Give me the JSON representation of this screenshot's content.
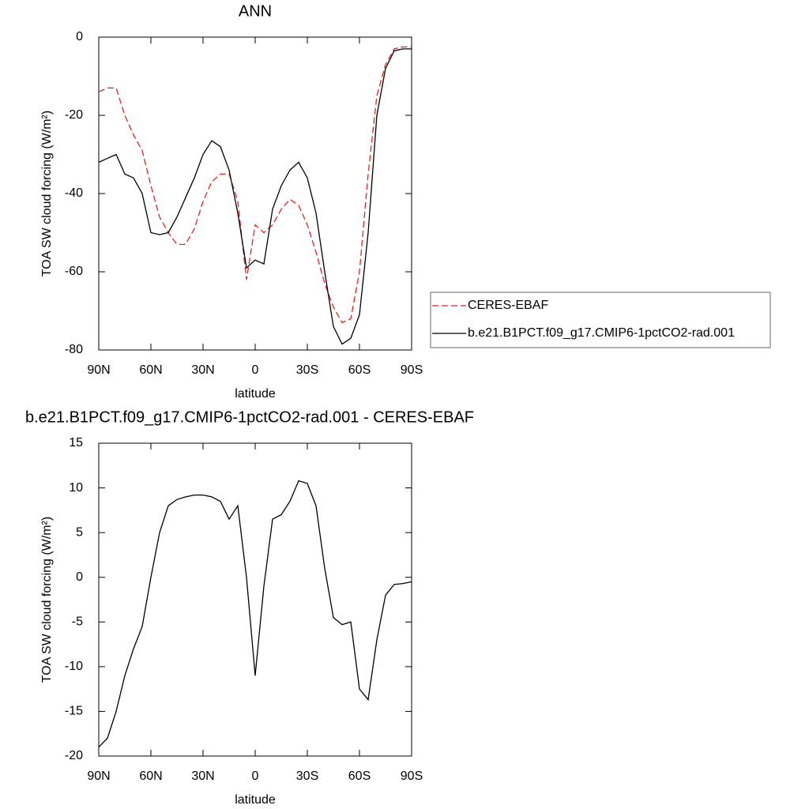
{
  "chart_data": [
    {
      "type": "line",
      "title": "ANN",
      "xlabel": "latitude",
      "ylabel": "TOA SW cloud forcing (W/m²)",
      "x": [
        90,
        85,
        80,
        75,
        70,
        65,
        60,
        55,
        50,
        45,
        40,
        35,
        30,
        25,
        20,
        15,
        10,
        5,
        0,
        -5,
        -10,
        -15,
        -20,
        -25,
        -30,
        -35,
        -40,
        -45,
        -50,
        -55,
        -60,
        -65,
        -70,
        -75,
        -80,
        -85,
        -90
      ],
      "xlim": [
        90,
        -90
      ],
      "xticks": [
        {
          "value": 90,
          "label": "90N"
        },
        {
          "value": 60,
          "label": "60N"
        },
        {
          "value": 30,
          "label": "30N"
        },
        0,
        {
          "value": -30,
          "label": "30S"
        },
        {
          "value": -60,
          "label": "60S"
        },
        {
          "value": -90,
          "label": "90S"
        }
      ],
      "ylim": [
        -80,
        0
      ],
      "yticks": [
        0,
        -20,
        -40,
        -60,
        -80
      ],
      "series": [
        {
          "name": "CERES-EBAF",
          "color": "#e8201c",
          "dashed": true,
          "values": [
            -14,
            -13,
            -13,
            -20,
            -25,
            -29,
            -38,
            -46,
            -50,
            -53,
            -53,
            -49,
            -42,
            -37,
            -35,
            -35,
            -42,
            -62,
            -48,
            -50,
            -48,
            -44,
            -41.5,
            -43,
            -48,
            -55,
            -63,
            -69,
            -73,
            -72,
            -60,
            -35,
            -15,
            -7,
            -3,
            -2.5,
            -2.5
          ]
        },
        {
          "name": "b.e21.B1PCT.f09_g17.CMIP6-1pctCO2-rad.001",
          "color": "#000000",
          "dashed": false,
          "values": [
            -32,
            -31,
            -30,
            -35,
            -36,
            -40,
            -50,
            -50.5,
            -50,
            -46,
            -41,
            -36,
            -30,
            -26.5,
            -28,
            -34,
            -45,
            -59,
            -57,
            -58,
            -44,
            -38,
            -34,
            -32,
            -36,
            -45,
            -60,
            -74,
            -78.5,
            -77,
            -71,
            -50,
            -20,
            -8,
            -3.5,
            -3,
            -3
          ]
        }
      ]
    },
    {
      "type": "line",
      "title": "b.e21.B1PCT.f09_g17.CMIP6-1pctCO2-rad.001 - CERES-EBAF",
      "xlabel": "latitude",
      "ylabel": "TOA SW cloud forcing (W/m²)",
      "x": [
        90,
        85,
        80,
        75,
        70,
        65,
        60,
        55,
        50,
        45,
        40,
        35,
        30,
        25,
        20,
        15,
        10,
        5,
        0,
        -5,
        -10,
        -15,
        -20,
        -25,
        -30,
        -35,
        -40,
        -45,
        -50,
        -55,
        -60,
        -65,
        -70,
        -75,
        -80,
        -85,
        -90
      ],
      "xlim": [
        90,
        -90
      ],
      "xticks": [
        {
          "value": 90,
          "label": "90N"
        },
        {
          "value": 60,
          "label": "60N"
        },
        {
          "value": 30,
          "label": "30N"
        },
        0,
        {
          "value": -30,
          "label": "30S"
        },
        {
          "value": -60,
          "label": "60S"
        },
        {
          "value": -90,
          "label": "90S"
        }
      ],
      "ylim": [
        -20,
        15
      ],
      "yticks": [
        15,
        10,
        5,
        0,
        -5,
        -10,
        -15,
        -20
      ],
      "series": [
        {
          "color": "#000000",
          "dashed": false,
          "values": [
            -19,
            -18,
            -15,
            -11,
            -8,
            -5.5,
            0,
            5,
            8,
            8.7,
            9,
            9.2,
            9.2,
            9,
            8.5,
            6.5,
            8,
            0,
            -11,
            -1,
            6.5,
            7,
            8.5,
            10.8,
            10.5,
            8,
            1,
            -4.5,
            -5.3,
            -5,
            -12.5,
            -13.7,
            -7,
            -2,
            -0.8,
            -0.7,
            -0.5
          ]
        }
      ]
    }
  ]
}
